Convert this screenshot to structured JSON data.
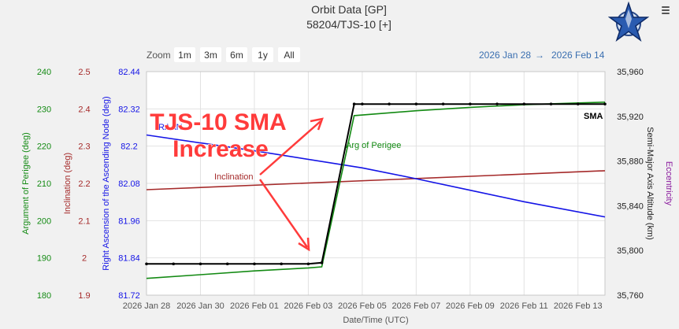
{
  "header": {
    "title": "Orbit Data [GP]",
    "subtitle": "58204/TJS-10 [+]"
  },
  "range_selector": {
    "zoom_label": "Zoom",
    "buttons": [
      "1m",
      "3m",
      "6m",
      "1y",
      "All"
    ],
    "from_date": "2026 Jan 28",
    "arrow": "→",
    "to_date": "2026 Feb 14"
  },
  "axes": {
    "perigee_title": "Argument of Perigee (deg)",
    "perigee_ticks": [
      "240",
      "230",
      "220",
      "210",
      "200",
      "190",
      "180"
    ],
    "inclination_title": "Inclination (deg)",
    "inclination_ticks": [
      "2.5",
      "2.4",
      "2.3",
      "2.2",
      "2.1",
      "2",
      "1.9"
    ],
    "raan_title": "Right Ascension of the Ascending Node (deg)",
    "raan_ticks": [
      "82.44",
      "82.32",
      "82.2",
      "82.08",
      "81.96",
      "81.84",
      "81.72"
    ],
    "sma_title": "Semi-Major Axis Altitude (km)",
    "sma_ticks": [
      "35,960",
      "35,920",
      "35,880",
      "35,840",
      "35,800",
      "35,760"
    ],
    "ecc_title": "Eccentricity",
    "x_title": "Date/Time (UTC)",
    "x_ticks": [
      "2026 Jan 28",
      "2026 Jan 30",
      "2026 Feb 01",
      "2026 Feb 03",
      "2026 Feb 05",
      "2026 Feb 07",
      "2026 Feb 09",
      "2026 Feb 11",
      "2026 Feb 13"
    ]
  },
  "series_labels": {
    "raan": "RAAN",
    "sma": "SMA",
    "perigee": "Arg of Perigee",
    "inclination": "Inclination"
  },
  "annotation": {
    "line1": "TJS-10 SMA",
    "line2": "Increase"
  },
  "colors": {
    "perigee": "#138a13",
    "inclination": "#a52a2a",
    "raan": "#1414e6",
    "sma": "#000000",
    "eccentricity": "#8a1a9e",
    "annotation": "#ff3b3b",
    "range_dates": "#3a6fb0"
  },
  "chart_data": {
    "type": "line",
    "title": "Orbit Data [GP]",
    "subtitle": "58204/TJS-10 [+]",
    "xlabel": "Date/Time (UTC)",
    "x_range": [
      "2026-01-28",
      "2026-02-14"
    ],
    "grid": true,
    "series": [
      {
        "name": "SMA",
        "axis": "Semi-Major Axis Altitude (km)",
        "ylim": [
          35760,
          35960
        ],
        "x": [
          "2026-01-28",
          "2026-01-29",
          "2026-01-30",
          "2026-01-31",
          "2026-02-01",
          "2026-02-02",
          "2026-02-03",
          "2026-02-03.5",
          "2026-02-04.7",
          "2026-02-05",
          "2026-02-06",
          "2026-02-07",
          "2026-02-08",
          "2026-02-09",
          "2026-02-10",
          "2026-02-11",
          "2026-02-12",
          "2026-02-13",
          "2026-02-14"
        ],
        "y": [
          35788,
          35788,
          35788,
          35788,
          35788,
          35788,
          35788,
          35789,
          35931,
          35931,
          35931,
          35931,
          35931,
          35931,
          35931,
          35931,
          35931,
          35931,
          35931
        ]
      },
      {
        "name": "Arg of Perigee",
        "axis": "Argument of Perigee (deg)",
        "ylim": [
          180,
          240
        ],
        "x": [
          "2026-01-28",
          "2026-01-30",
          "2026-02-01",
          "2026-02-03",
          "2026-02-03.5",
          "2026-02-04.7",
          "2026-02-07",
          "2026-02-09",
          "2026-02-11",
          "2026-02-13",
          "2026-02-14"
        ],
        "y": [
          184.5,
          185.5,
          186.5,
          187.3,
          187.6,
          228.2,
          229.5,
          230.4,
          231.1,
          231.6,
          231.8
        ]
      },
      {
        "name": "RAAN",
        "axis": "Right Ascension of the Ascending Node (deg)",
        "ylim": [
          81.72,
          82.44
        ],
        "x": [
          "2026-01-28",
          "2026-02-01",
          "2026-02-05",
          "2026-02-07",
          "2026-02-09",
          "2026-02-11",
          "2026-02-14"
        ],
        "y": [
          82.236,
          82.185,
          82.13,
          82.095,
          82.058,
          82.021,
          81.972
        ]
      },
      {
        "name": "Inclination",
        "axis": "Inclination (deg)",
        "ylim": [
          1.9,
          2.5
        ],
        "x": [
          "2026-01-28",
          "2026-02-14"
        ],
        "y": [
          2.183,
          2.234
        ]
      }
    ]
  }
}
